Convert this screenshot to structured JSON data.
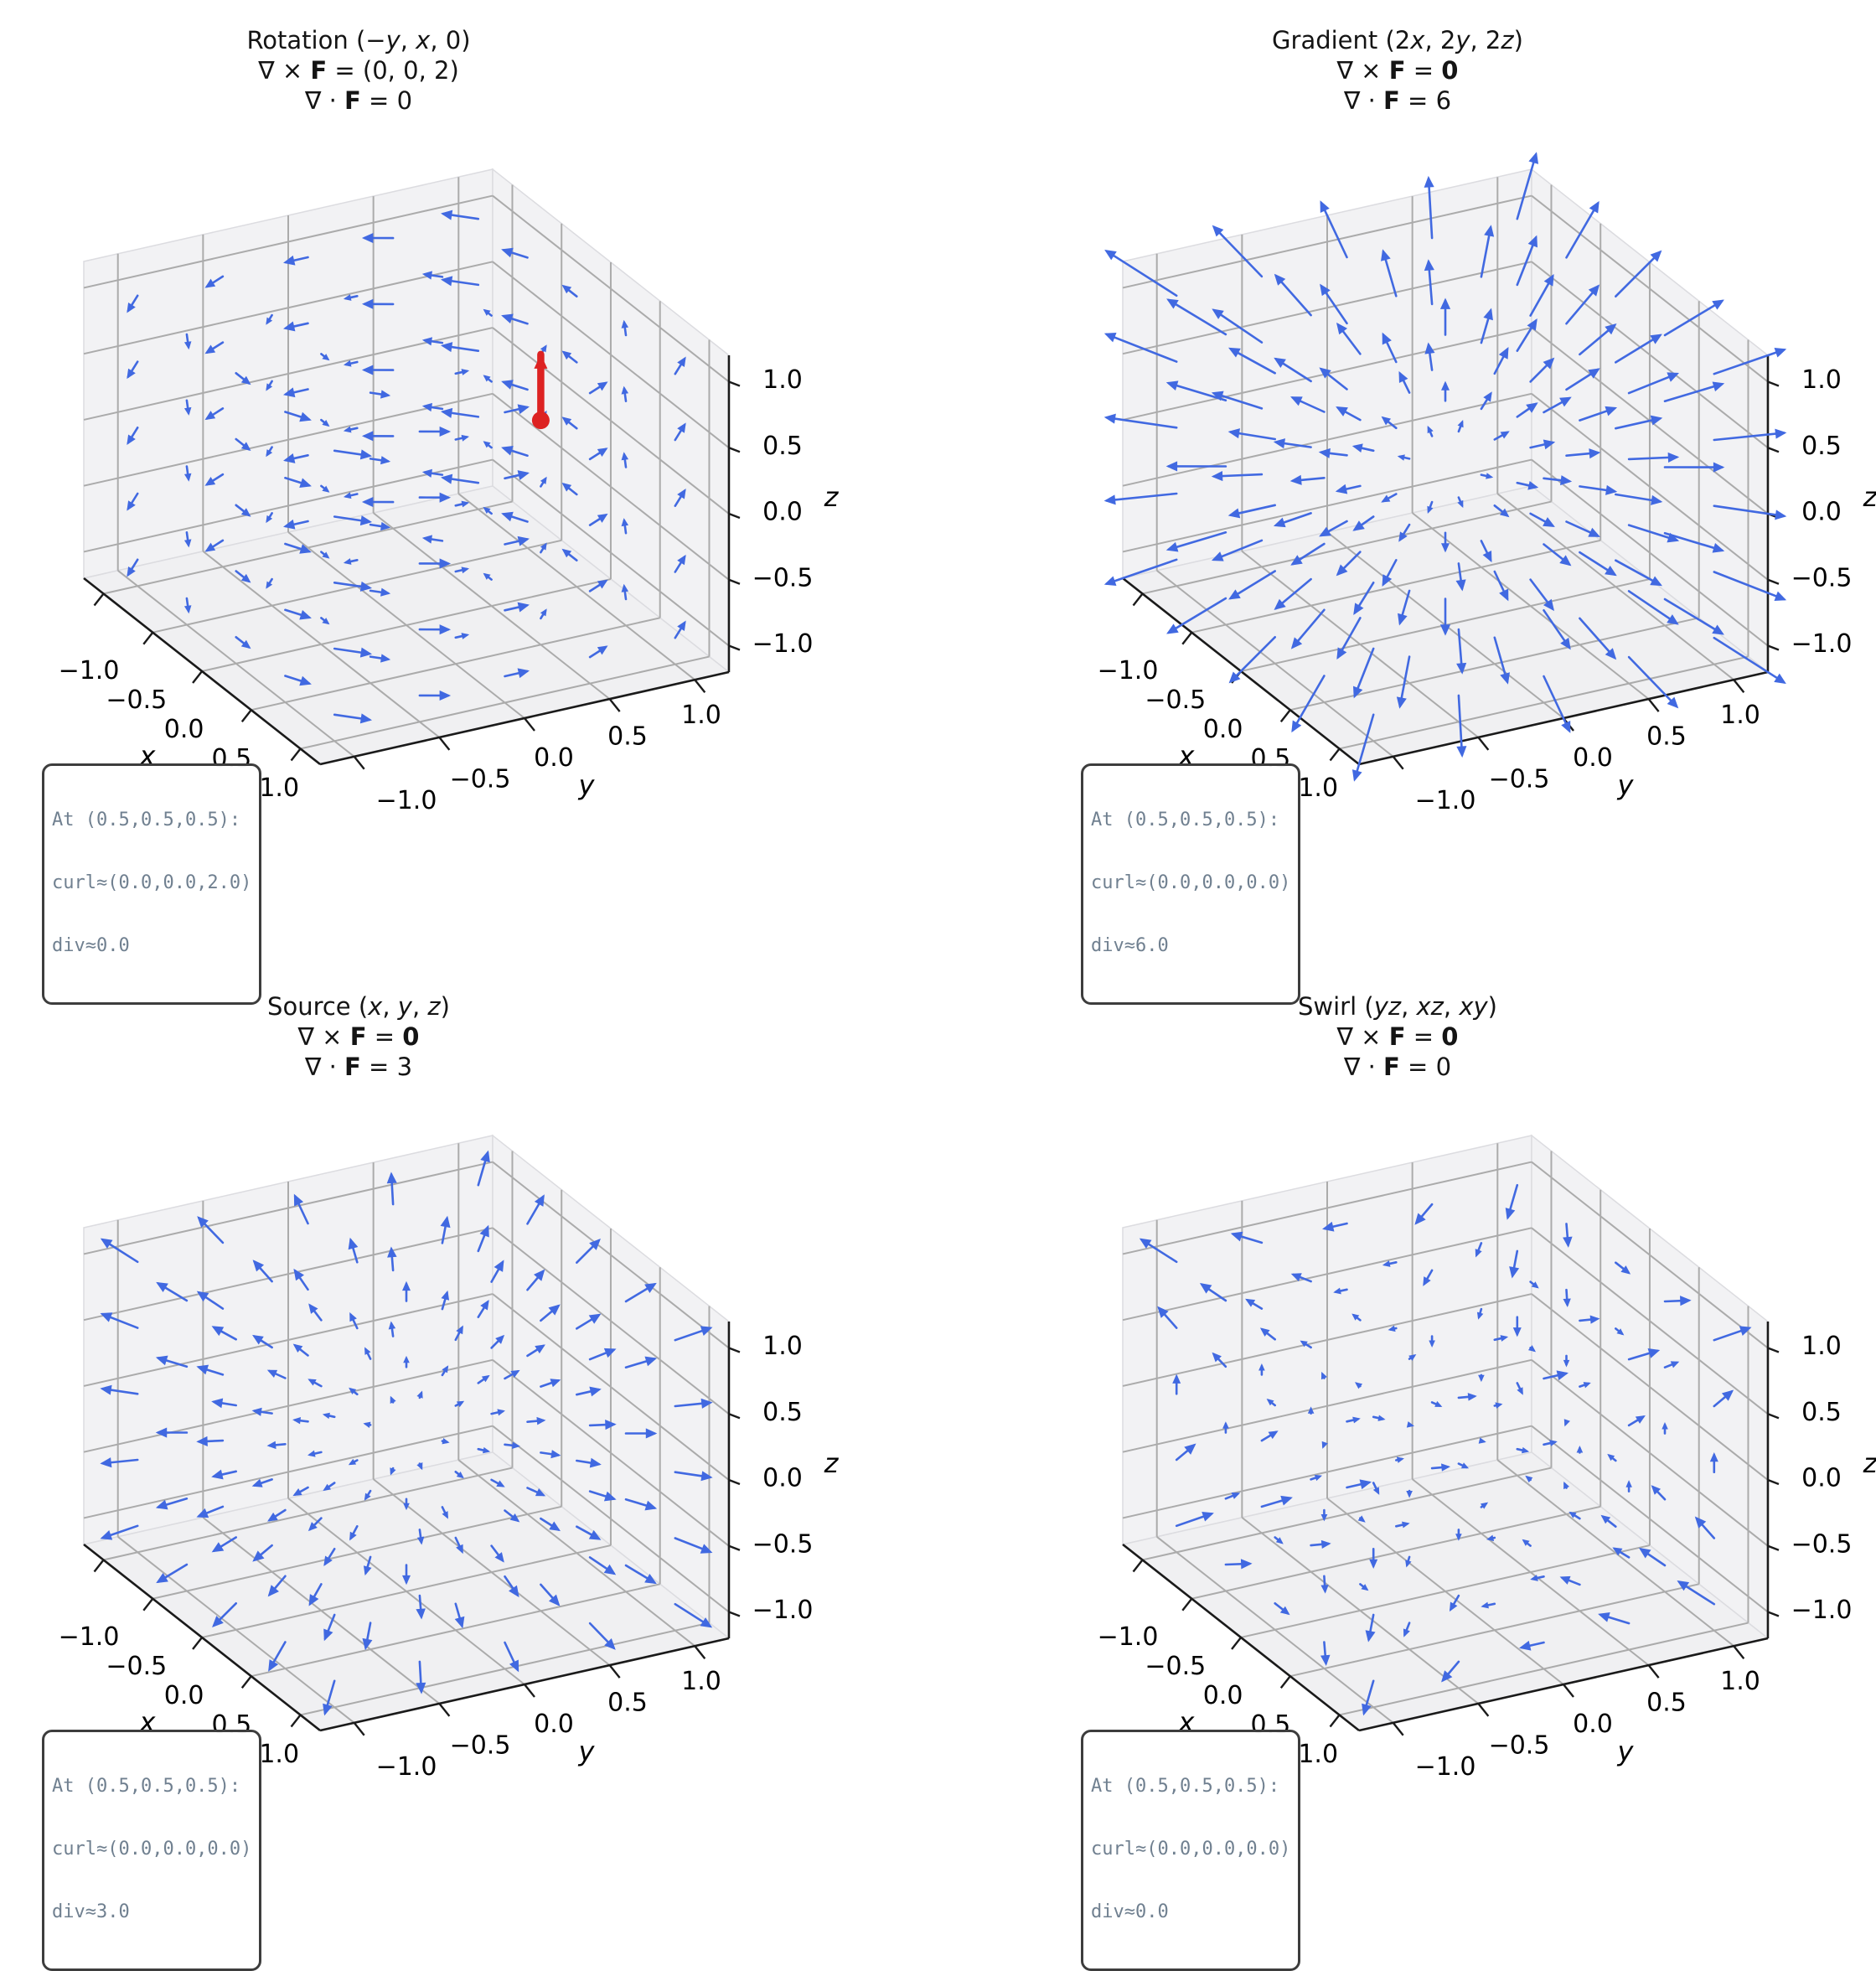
{
  "figure": {
    "background": "#ffffff",
    "description": "2x2 grid of 3D vector field quiver plots with curl and divergence"
  },
  "chart_data": {
    "type": "quiver3d",
    "layout": "2x2",
    "axes": {
      "tick_values": [
        -1.0,
        -0.5,
        0.0,
        0.5,
        1.0
      ],
      "tick_labels": [
        "−1.0",
        "−0.5",
        "0.0",
        "0.5",
        "1.0"
      ],
      "labels": {
        "x": "x",
        "y": "y",
        "z": "z"
      },
      "range": [
        -1.2,
        1.2
      ],
      "grid": true
    },
    "quiver": {
      "color": "#4169e1",
      "grid": {
        "min": -1,
        "max": 1,
        "step": 0.5
      },
      "scale": 0.13
    },
    "subplots": [
      {
        "id": "rotation",
        "field_id": "rotation",
        "field": "(−y, x, 0)",
        "curl": "(0, 0, 2)",
        "divergence": "0",
        "title_lines": [
          [
            {
              "t": "Rotation ("
            },
            {
              "t": "−y",
              "i": true
            },
            {
              "t": ", "
            },
            {
              "t": "x",
              "i": true
            },
            {
              "t": ", 0)"
            }
          ],
          [
            {
              "t": "∇ × "
            },
            {
              "t": "F",
              "b": true
            },
            {
              "t": " = (0, 0, 2)"
            }
          ],
          [
            {
              "t": "∇ · "
            },
            {
              "t": "F",
              "b": true
            },
            {
              "t": " = 0"
            }
          ]
        ],
        "annotation_lines": [
          "At (0.5,0.5,0.5):",
          "curl≈(0.0,0.0,2.0)",
          "div≈0.0"
        ],
        "marker": {
          "point": [
            0.5,
            0.5,
            0.5
          ],
          "vector": [
            0,
            0,
            2
          ],
          "draw_scale": 0.25,
          "color": "#dd2222"
        }
      },
      {
        "id": "gradient",
        "field_id": "gradient",
        "field": "(2x, 2y, 2z)",
        "curl": "0",
        "divergence": "6",
        "title_lines": [
          [
            {
              "t": "Gradient (2"
            },
            {
              "t": "x",
              "i": true
            },
            {
              "t": ", 2"
            },
            {
              "t": "y",
              "i": true
            },
            {
              "t": ", 2"
            },
            {
              "t": "z",
              "i": true
            },
            {
              "t": ")"
            }
          ],
          [
            {
              "t": "∇ × "
            },
            {
              "t": "F",
              "b": true
            },
            {
              "t": " = "
            },
            {
              "t": "0",
              "b": true
            }
          ],
          [
            {
              "t": "∇ · "
            },
            {
              "t": "F",
              "b": true
            },
            {
              "t": " = 6"
            }
          ]
        ],
        "annotation_lines": [
          "At (0.5,0.5,0.5):",
          "curl≈(0.0,0.0,0.0)",
          "div≈6.0"
        ],
        "marker": null
      },
      {
        "id": "source",
        "field_id": "source",
        "field": "(x, y, z)",
        "curl": "0",
        "divergence": "3",
        "title_lines": [
          [
            {
              "t": "Source ("
            },
            {
              "t": "x",
              "i": true
            },
            {
              "t": ", "
            },
            {
              "t": "y",
              "i": true
            },
            {
              "t": ", "
            },
            {
              "t": "z",
              "i": true
            },
            {
              "t": ")"
            }
          ],
          [
            {
              "t": "∇ × "
            },
            {
              "t": "F",
              "b": true
            },
            {
              "t": " = "
            },
            {
              "t": "0",
              "b": true
            }
          ],
          [
            {
              "t": "∇ · "
            },
            {
              "t": "F",
              "b": true
            },
            {
              "t": " = 3"
            }
          ]
        ],
        "annotation_lines": [
          "At (0.5,0.5,0.5):",
          "curl≈(0.0,0.0,0.0)",
          "div≈3.0"
        ],
        "marker": null
      },
      {
        "id": "swirl",
        "field_id": "swirl",
        "field": "(yz, xz, xy)",
        "curl": "0",
        "divergence": "0",
        "title_lines": [
          [
            {
              "t": "Swirl ("
            },
            {
              "t": "yz",
              "i": true
            },
            {
              "t": ", "
            },
            {
              "t": "xz",
              "i": true
            },
            {
              "t": ", "
            },
            {
              "t": "xy",
              "i": true
            },
            {
              "t": ")"
            }
          ],
          [
            {
              "t": "∇ × "
            },
            {
              "t": "F",
              "b": true
            },
            {
              "t": " = "
            },
            {
              "t": "0",
              "b": true
            }
          ],
          [
            {
              "t": "∇ · "
            },
            {
              "t": "F",
              "b": true
            },
            {
              "t": " = 0"
            }
          ]
        ],
        "annotation_lines": [
          "At (0.5,0.5,0.5):",
          "curl≈(0.0,0.0,0.0)",
          "div≈0.0"
        ],
        "marker": null
      }
    ],
    "style": {
      "pane_wall": "#f2f2f4",
      "pane_floor": "#f0f0f2",
      "pane_edge": "#dcdce0",
      "grid_line": "#ababab",
      "spine": "#1a1a1a",
      "tick_label_color": "#000000"
    }
  }
}
